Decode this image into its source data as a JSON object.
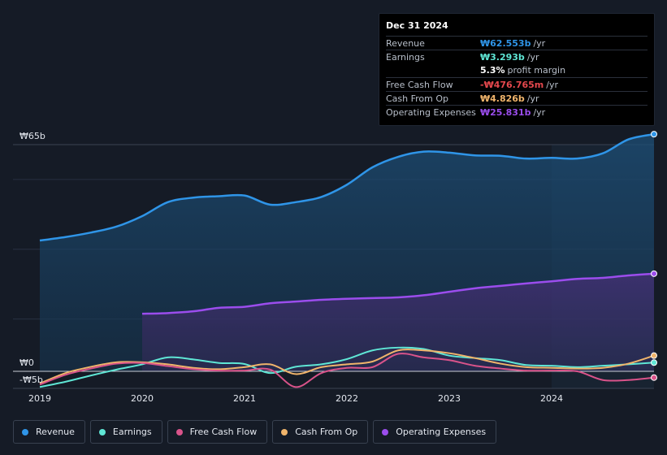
{
  "chart_data": {
    "type": "area",
    "x_range": [
      2018.8,
      2025.0
    ],
    "ylim": [
      -5,
      65
    ],
    "y_ticks": [
      {
        "value": 65,
        "label": "₩65b"
      },
      {
        "value": 0,
        "label": "₩0"
      },
      {
        "value": -5,
        "label": "-₩5b"
      }
    ],
    "x_ticks": [
      {
        "value": 2019,
        "label": "2019"
      },
      {
        "value": 2020,
        "label": "2020"
      },
      {
        "value": 2021,
        "label": "2021"
      },
      {
        "value": 2022,
        "label": "2022"
      },
      {
        "value": 2023,
        "label": "2023"
      },
      {
        "value": 2024,
        "label": "2024"
      }
    ],
    "highlight_from": 2024.0,
    "series": [
      {
        "name": "Revenue",
        "color": "#2f95e8",
        "fill": true,
        "points": [
          [
            2019.0,
            37.5
          ],
          [
            2019.25,
            38.5
          ],
          [
            2019.5,
            39.8
          ],
          [
            2019.75,
            41.5
          ],
          [
            2020.0,
            44.5
          ],
          [
            2020.25,
            48.5
          ],
          [
            2020.5,
            49.8
          ],
          [
            2020.75,
            50.2
          ],
          [
            2021.0,
            50.4
          ],
          [
            2021.25,
            47.8
          ],
          [
            2021.5,
            48.5
          ],
          [
            2021.75,
            50.0
          ],
          [
            2022.0,
            53.5
          ],
          [
            2022.25,
            58.5
          ],
          [
            2022.5,
            61.5
          ],
          [
            2022.75,
            63.0
          ],
          [
            2023.0,
            62.7
          ],
          [
            2023.25,
            61.9
          ],
          [
            2023.5,
            61.8
          ],
          [
            2023.75,
            61.0
          ],
          [
            2024.0,
            61.2
          ],
          [
            2024.25,
            61.0
          ],
          [
            2024.5,
            62.5
          ],
          [
            2024.75,
            66.5
          ],
          [
            2025.0,
            68.0
          ]
        ]
      },
      {
        "name": "Operating Expenses",
        "color": "#9b4ded",
        "fill": true,
        "points": [
          [
            2020.0,
            16.5
          ],
          [
            2020.25,
            16.7
          ],
          [
            2020.5,
            17.2
          ],
          [
            2020.75,
            18.2
          ],
          [
            2021.0,
            18.5
          ],
          [
            2021.25,
            19.5
          ],
          [
            2021.5,
            20.0
          ],
          [
            2021.75,
            20.5
          ],
          [
            2022.0,
            20.8
          ],
          [
            2022.25,
            21.0
          ],
          [
            2022.5,
            21.2
          ],
          [
            2022.75,
            21.8
          ],
          [
            2023.0,
            22.8
          ],
          [
            2023.25,
            23.8
          ],
          [
            2023.5,
            24.5
          ],
          [
            2023.75,
            25.2
          ],
          [
            2024.0,
            25.8
          ],
          [
            2024.25,
            26.5
          ],
          [
            2024.5,
            26.8
          ],
          [
            2024.75,
            27.5
          ],
          [
            2025.0,
            28.0
          ]
        ]
      },
      {
        "name": "Earnings",
        "color": "#5fe6d5",
        "fill": false,
        "points": [
          [
            2019.0,
            -4.5
          ],
          [
            2019.25,
            -3.0
          ],
          [
            2019.5,
            -1.2
          ],
          [
            2019.75,
            0.5
          ],
          [
            2020.0,
            2.0
          ],
          [
            2020.25,
            4.0
          ],
          [
            2020.5,
            3.4
          ],
          [
            2020.75,
            2.4
          ],
          [
            2021.0,
            2.1
          ],
          [
            2021.25,
            -0.5
          ],
          [
            2021.5,
            1.3
          ],
          [
            2021.75,
            2.0
          ],
          [
            2022.0,
            3.5
          ],
          [
            2022.25,
            6.0
          ],
          [
            2022.5,
            6.8
          ],
          [
            2022.75,
            6.4
          ],
          [
            2023.0,
            4.5
          ],
          [
            2023.25,
            3.8
          ],
          [
            2023.5,
            3.2
          ],
          [
            2023.75,
            1.8
          ],
          [
            2024.0,
            1.6
          ],
          [
            2024.25,
            1.2
          ],
          [
            2024.5,
            1.6
          ],
          [
            2024.75,
            2.0
          ],
          [
            2025.0,
            2.5
          ]
        ]
      },
      {
        "name": "Cash From Op",
        "color": "#f0b46b",
        "fill": false,
        "points": [
          [
            2019.0,
            -3.5
          ],
          [
            2019.25,
            -0.5
          ],
          [
            2019.5,
            1.3
          ],
          [
            2019.75,
            2.6
          ],
          [
            2020.0,
            2.6
          ],
          [
            2020.25,
            2.0
          ],
          [
            2020.5,
            1.0
          ],
          [
            2020.75,
            0.6
          ],
          [
            2021.0,
            1.2
          ],
          [
            2021.25,
            2.0
          ],
          [
            2021.5,
            -0.8
          ],
          [
            2021.75,
            1.2
          ],
          [
            2022.0,
            2.0
          ],
          [
            2022.25,
            2.8
          ],
          [
            2022.5,
            6.0
          ],
          [
            2022.75,
            6.0
          ],
          [
            2023.0,
            5.2
          ],
          [
            2023.25,
            3.8
          ],
          [
            2023.5,
            2.2
          ],
          [
            2023.75,
            1.2
          ],
          [
            2024.0,
            1.0
          ],
          [
            2024.25,
            0.8
          ],
          [
            2024.5,
            1.0
          ],
          [
            2024.75,
            2.2
          ],
          [
            2025.0,
            4.5
          ]
        ]
      },
      {
        "name": "Free Cash Flow",
        "color": "#d9538a",
        "fill": false,
        "points": [
          [
            2019.0,
            -3.8
          ],
          [
            2019.25,
            -1.0
          ],
          [
            2019.5,
            0.8
          ],
          [
            2019.75,
            2.2
          ],
          [
            2020.0,
            2.4
          ],
          [
            2020.25,
            1.5
          ],
          [
            2020.5,
            0.6
          ],
          [
            2020.75,
            0.2
          ],
          [
            2021.0,
            0.2
          ],
          [
            2021.25,
            0.5
          ],
          [
            2021.5,
            -4.5
          ],
          [
            2021.75,
            -0.5
          ],
          [
            2022.0,
            1.0
          ],
          [
            2022.25,
            1.2
          ],
          [
            2022.5,
            5.0
          ],
          [
            2022.75,
            4.0
          ],
          [
            2023.0,
            3.2
          ],
          [
            2023.25,
            1.6
          ],
          [
            2023.5,
            0.8
          ],
          [
            2023.75,
            0.2
          ],
          [
            2024.0,
            0.2
          ],
          [
            2024.25,
            0.0
          ],
          [
            2024.5,
            -2.5
          ],
          [
            2024.75,
            -2.5
          ],
          [
            2025.0,
            -1.8
          ]
        ]
      }
    ]
  },
  "tooltip": {
    "date": "Dec 31 2024",
    "rows": [
      {
        "label": "Revenue",
        "value": "₩62.553b",
        "unit": "/yr",
        "color": "#2f95e8"
      },
      {
        "label": "Earnings",
        "value": "₩3.293b",
        "unit": "/yr",
        "color": "#5fe6d5"
      },
      {
        "label": "",
        "value": "5.3%",
        "unit": "profit margin",
        "color": "#ffffff"
      },
      {
        "label": "Free Cash Flow",
        "value": "-₩476.765m",
        "unit": "/yr",
        "color": "#e5484d"
      },
      {
        "label": "Cash From Op",
        "value": "₩4.826b",
        "unit": "/yr",
        "color": "#f0b46b"
      },
      {
        "label": "Operating Expenses",
        "value": "₩25.831b",
        "unit": "/yr",
        "color": "#9b4ded"
      }
    ]
  },
  "legend": [
    {
      "label": "Revenue",
      "color": "#2f95e8"
    },
    {
      "label": "Earnings",
      "color": "#5fe6d5"
    },
    {
      "label": "Free Cash Flow",
      "color": "#d9538a"
    },
    {
      "label": "Cash From Op",
      "color": "#f0b46b"
    },
    {
      "label": "Operating Expenses",
      "color": "#9b4ded"
    }
  ]
}
